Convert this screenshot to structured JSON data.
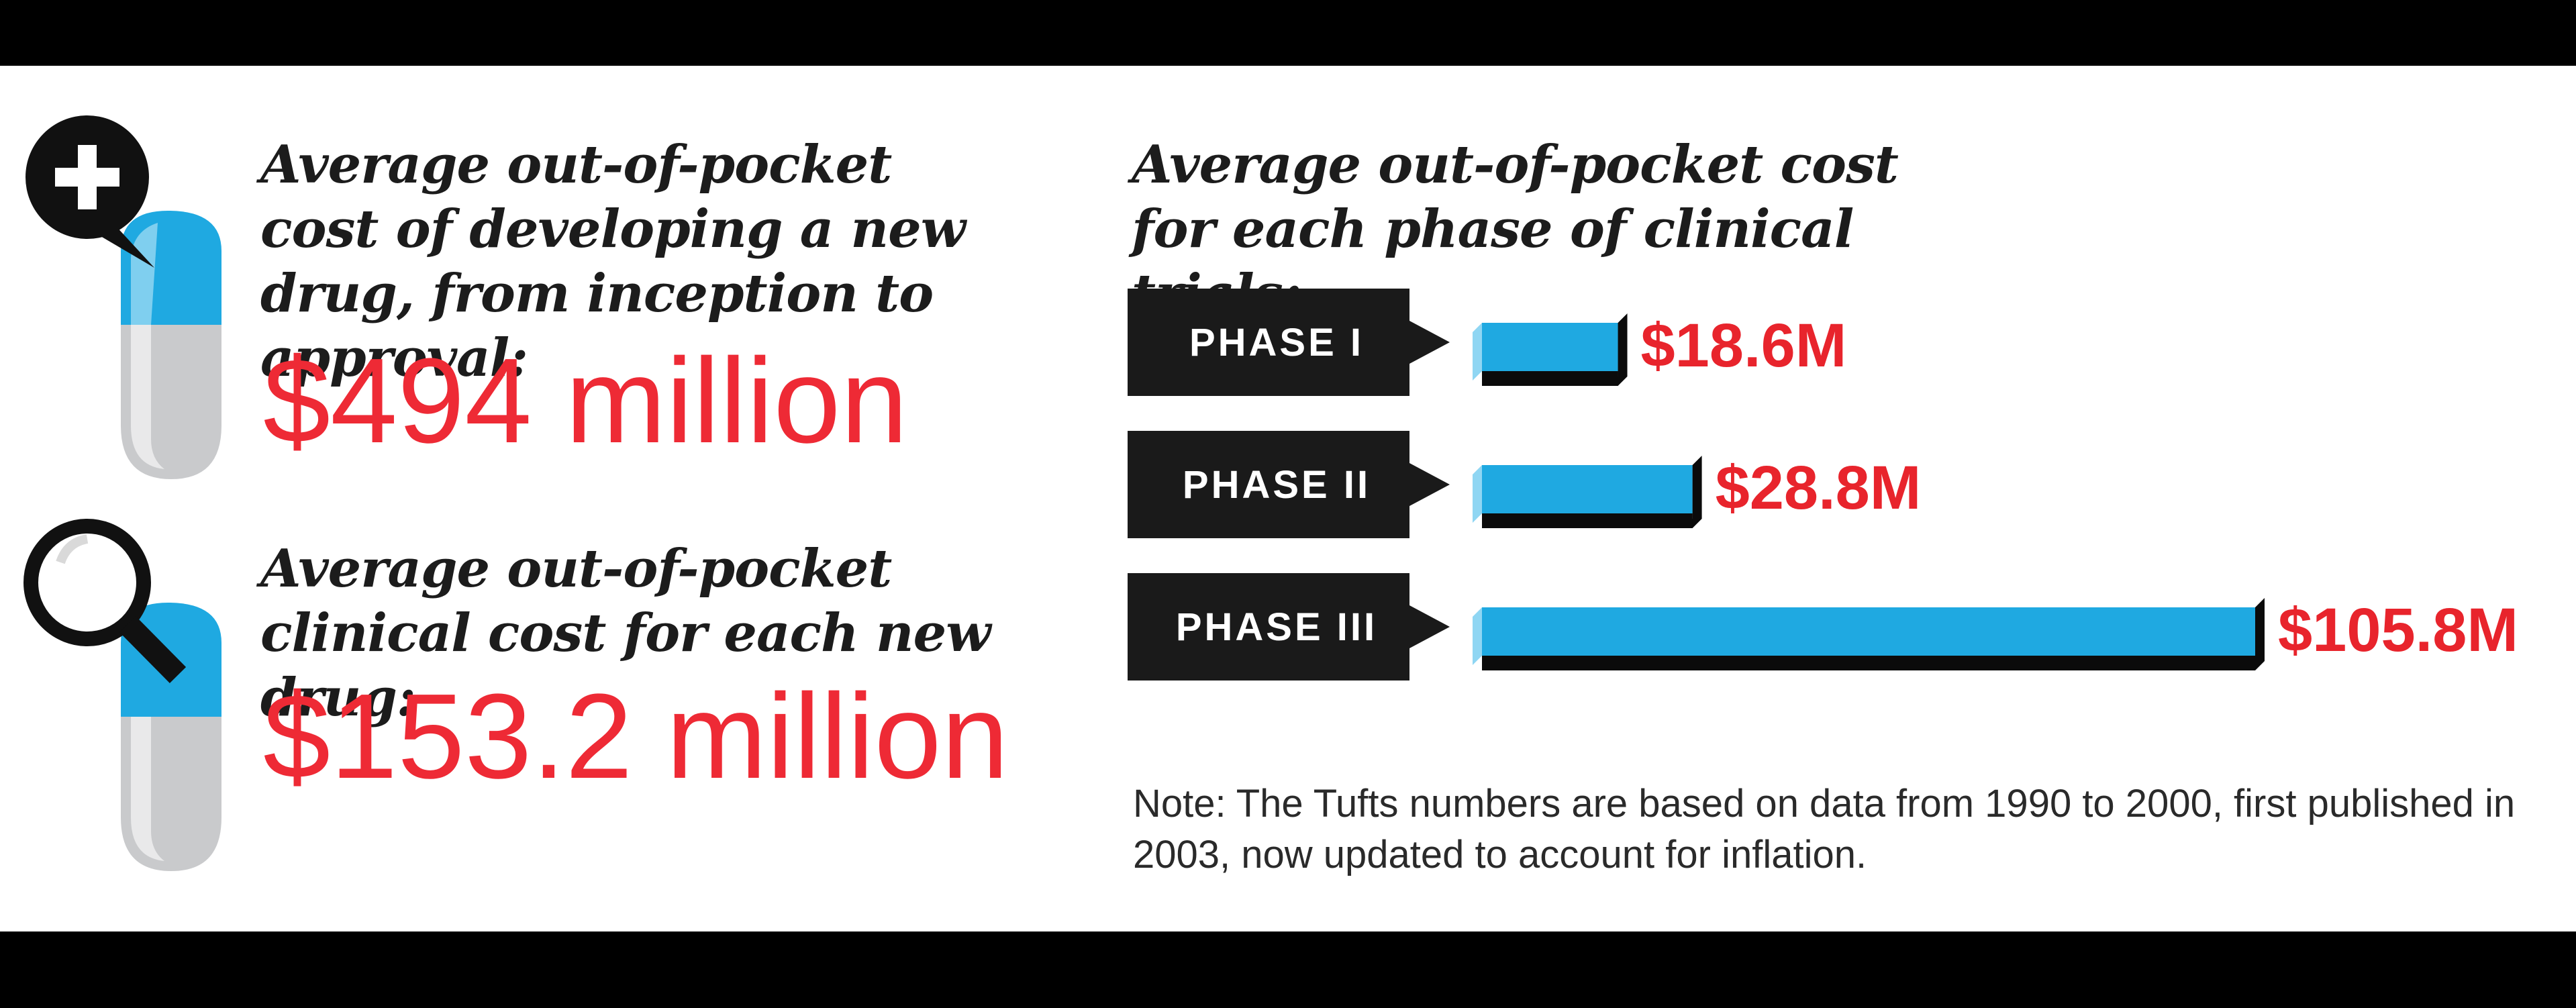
{
  "left": {
    "item1": {
      "heading": "Average out-of-pocket cost of developing a new drug, from inception to approval:",
      "value": "$494 million",
      "icon": "pill-plus-icon"
    },
    "item2": {
      "heading": "Average out-of-pocket clinical cost for each new drug:",
      "value": "$153.2 million",
      "icon": "pill-magnifier-icon"
    }
  },
  "chart_data": {
    "type": "bar",
    "title": "Average out-of-pocket cost for each phase of clinical trials:",
    "categories": [
      "PHASE I",
      "PHASE II",
      "PHASE III"
    ],
    "values": [
      18.6,
      28.8,
      105.8
    ],
    "value_labels": [
      "$18.6M",
      "$28.8M",
      "$105.8M"
    ],
    "orientation": "horizontal",
    "colors": {
      "bar": "#1fa9e1",
      "bar_shadow": "#0b0b0b",
      "bar_light": "#8fd6f3",
      "value_text": "#e8242c",
      "label_box": "#1a1a1a"
    }
  },
  "note": "Note: The Tufts numbers are based on data from 1990 to 2000, first published in 2003, now updated to account for inflation.",
  "colors": {
    "accent": "#ee2a35",
    "pill_blue": "#1fa9e1",
    "pill_gray": "#c9cacc"
  }
}
